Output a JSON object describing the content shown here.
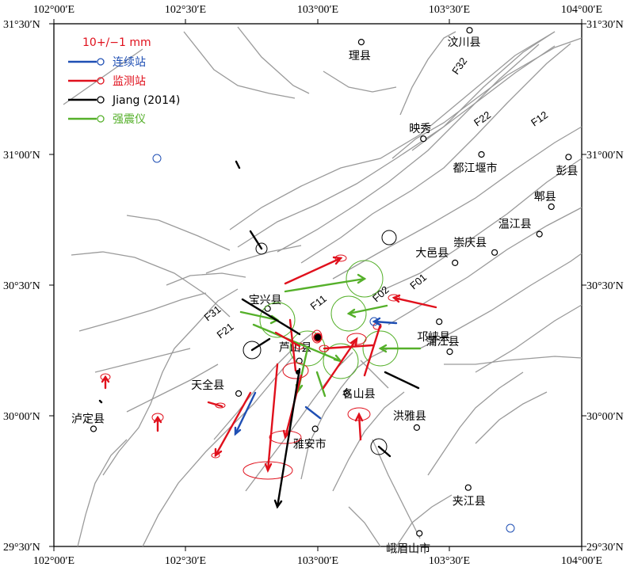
{
  "map": {
    "lon_ticks": [
      "102°00′E",
      "102°30′E",
      "103°00′E",
      "103°30′E",
      "104°00′E"
    ],
    "lat_ticks": [
      "31°30′N",
      "31°00′N",
      "30°30′N",
      "30°00′N",
      "29°30′N"
    ],
    "lon_range": [
      102.0,
      104.0
    ],
    "lat_range": [
      29.5,
      31.5
    ]
  },
  "legend": {
    "scale": "10+/−1 mm",
    "entries": [
      {
        "label": "连续站",
        "color": "#1f4fb4"
      },
      {
        "label": "监测站",
        "color": "#e0101c"
      },
      {
        "label": "Jiang (2014)",
        "color": "#000000"
      },
      {
        "label": "强震仪",
        "color": "#55b02a"
      }
    ]
  },
  "faults": [
    "F01",
    "F02",
    "F11",
    "F12",
    "F21",
    "F22",
    "F31",
    "F32"
  ],
  "places": [
    {
      "name": "理县",
      "lon": 103.165,
      "lat": 31.43
    },
    {
      "name": "汶川县",
      "lon": 103.575,
      "lat": 31.475
    },
    {
      "name": "映秀",
      "lon": 103.4,
      "lat": 31.06
    },
    {
      "name": "都江堰市",
      "lon": 103.62,
      "lat": 31.0
    },
    {
      "name": "彭县",
      "lon": 103.95,
      "lat": 30.99
    },
    {
      "name": "郫县",
      "lon": 103.885,
      "lat": 30.8
    },
    {
      "name": "温江县",
      "lon": 103.84,
      "lat": 30.695
    },
    {
      "name": "崇庆县",
      "lon": 103.67,
      "lat": 30.625
    },
    {
      "name": "大邑县",
      "lon": 103.52,
      "lat": 30.585
    },
    {
      "name": "邛崃县",
      "lon": 103.46,
      "lat": 30.36
    },
    {
      "name": "蒲江县",
      "lon": 103.5,
      "lat": 30.245
    },
    {
      "name": "名山县",
      "lon": 103.11,
      "lat": 30.085
    },
    {
      "name": "洪雅县",
      "lon": 103.375,
      "lat": 29.955
    },
    {
      "name": "雅安市",
      "lon": 102.99,
      "lat": 29.95
    },
    {
      "name": "芦山县",
      "lon": 102.93,
      "lat": 30.21
    },
    {
      "name": "宝兴县",
      "lon": 102.81,
      "lat": 30.41
    },
    {
      "name": "天全县",
      "lon": 102.7,
      "lat": 30.085
    },
    {
      "name": "泸定县",
      "lon": 102.15,
      "lat": 29.95
    },
    {
      "name": "夹江县",
      "lon": 103.57,
      "lat": 29.725
    },
    {
      "name": "峨眉山市",
      "lon": 103.385,
      "lat": 29.55
    }
  ]
}
